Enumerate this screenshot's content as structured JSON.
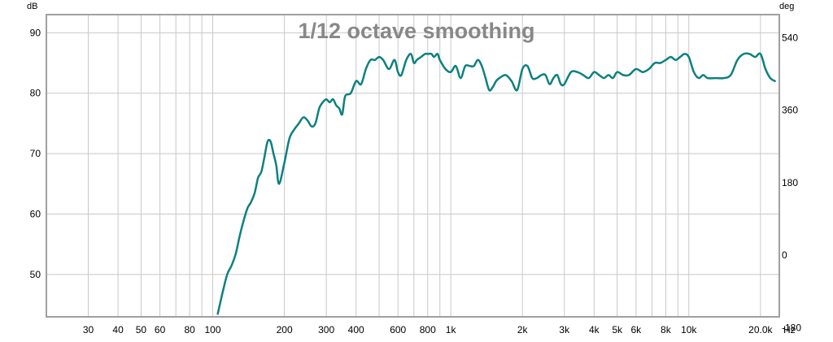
{
  "chart_data": {
    "type": "line",
    "title": "1/12 octave smoothing",
    "y_unit": "dB",
    "y2_unit": "deg",
    "x_unit": "Hz",
    "x_scale": "log",
    "xlim": [
      20,
      24000
    ],
    "ylim": [
      43,
      93
    ],
    "y2lim": [
      -153,
      597
    ],
    "grid": true,
    "x_grid": [
      20,
      30,
      40,
      50,
      60,
      70,
      80,
      90,
      100,
      200,
      300,
      400,
      500,
      600,
      700,
      800,
      900,
      1000,
      2000,
      3000,
      4000,
      5000,
      6000,
      7000,
      8000,
      9000,
      10000,
      20000
    ],
    "y_grid": [
      50,
      60,
      70,
      80,
      90
    ],
    "x_ticks": [
      {
        "v": 30,
        "label": "30"
      },
      {
        "v": 40,
        "label": "40"
      },
      {
        "v": 50,
        "label": "50"
      },
      {
        "v": 60,
        "label": "60"
      },
      {
        "v": 80,
        "label": "80"
      },
      {
        "v": 100,
        "label": "100"
      },
      {
        "v": 200,
        "label": "200"
      },
      {
        "v": 300,
        "label": "300"
      },
      {
        "v": 400,
        "label": "400"
      },
      {
        "v": 600,
        "label": "600"
      },
      {
        "v": 800,
        "label": "800"
      },
      {
        "v": 1000,
        "label": "1k"
      },
      {
        "v": 2000,
        "label": "2k"
      },
      {
        "v": 3000,
        "label": "3k"
      },
      {
        "v": 4000,
        "label": "4k"
      },
      {
        "v": 5000,
        "label": "5k"
      },
      {
        "v": 6000,
        "label": "6k"
      },
      {
        "v": 8000,
        "label": "8k"
      },
      {
        "v": 10000,
        "label": "10k"
      },
      {
        "v": 20000,
        "label": "20.0k"
      }
    ],
    "y_ticks": [
      {
        "v": 90,
        "label": "90"
      },
      {
        "v": 80,
        "label": "80"
      },
      {
        "v": 70,
        "label": "70"
      },
      {
        "v": 60,
        "label": "60"
      },
      {
        "v": 50,
        "label": "50"
      }
    ],
    "y2_ticks": [
      {
        "v": 540,
        "label": "540"
      },
      {
        "v": 360,
        "label": "360"
      },
      {
        "v": 180,
        "label": "180"
      },
      {
        "v": 0,
        "label": "0"
      },
      {
        "v": -180,
        "label": "-180"
      }
    ],
    "colors": {
      "series": "#0e8080",
      "grid": "#c8c8c8",
      "frame": "#a0a0a0",
      "title": "#888888"
    },
    "series": [
      {
        "color": "#0e8080",
        "x": [
          105,
          110,
          115,
          120,
          125,
          130,
          135,
          140,
          145,
          150,
          155,
          160,
          165,
          170,
          175,
          180,
          185,
          190,
          200,
          210,
          220,
          230,
          240,
          250,
          260,
          270,
          280,
          290,
          300,
          310,
          320,
          330,
          340,
          350,
          360,
          380,
          400,
          420,
          440,
          460,
          480,
          500,
          520,
          550,
          580,
          600,
          620,
          650,
          680,
          700,
          720,
          750,
          780,
          800,
          830,
          850,
          880,
          900,
          950,
          1000,
          1050,
          1100,
          1150,
          1200,
          1250,
          1300,
          1350,
          1400,
          1450,
          1500,
          1550,
          1600,
          1700,
          1800,
          1900,
          2000,
          2100,
          2200,
          2300,
          2400,
          2500,
          2600,
          2700,
          2800,
          2900,
          3000,
          3200,
          3400,
          3600,
          3800,
          4000,
          4200,
          4400,
          4600,
          4800,
          5000,
          5300,
          5600,
          6000,
          6400,
          6800,
          7200,
          7600,
          8000,
          8400,
          8800,
          9200,
          9600,
          10000,
          10500,
          11000,
          11500,
          12000,
          13000,
          14000,
          15000,
          16000,
          17000,
          18000,
          19000,
          20000,
          21000,
          22000,
          23000
        ],
        "y": [
          43.5,
          47,
          50,
          51.5,
          53.5,
          56.5,
          59,
          61,
          62,
          63.5,
          66,
          67,
          69.5,
          72,
          72,
          70,
          68,
          65,
          68.5,
          72.5,
          74,
          75,
          76,
          75.5,
          74.5,
          75,
          77.5,
          78.5,
          79,
          78.5,
          79,
          78,
          77.5,
          76.5,
          79.5,
          80,
          82,
          81.5,
          84,
          85.5,
          85.5,
          86,
          85.5,
          84,
          85.5,
          83.5,
          83,
          85.5,
          86.5,
          85,
          85.5,
          86,
          86.5,
          86.5,
          86.5,
          86,
          86.5,
          85.5,
          84,
          83.5,
          84.5,
          82.5,
          84.5,
          84.5,
          84.5,
          85.5,
          84.5,
          82.5,
          80.5,
          81,
          82,
          82.5,
          83,
          82,
          80.5,
          84,
          84.5,
          82.5,
          82.5,
          83,
          83,
          81.5,
          82.5,
          83,
          81.5,
          81.5,
          83.5,
          83.5,
          83,
          82.5,
          83.5,
          83,
          82.5,
          83,
          82.5,
          83.5,
          83,
          83,
          84,
          83.5,
          84,
          85,
          85,
          85.5,
          86,
          85.5,
          86,
          86.5,
          86,
          83.5,
          82.5,
          83,
          82.5,
          82.5,
          82.5,
          83,
          85.5,
          86.5,
          86.5,
          86,
          86.5,
          84,
          82.5,
          82
        ]
      }
    ]
  }
}
